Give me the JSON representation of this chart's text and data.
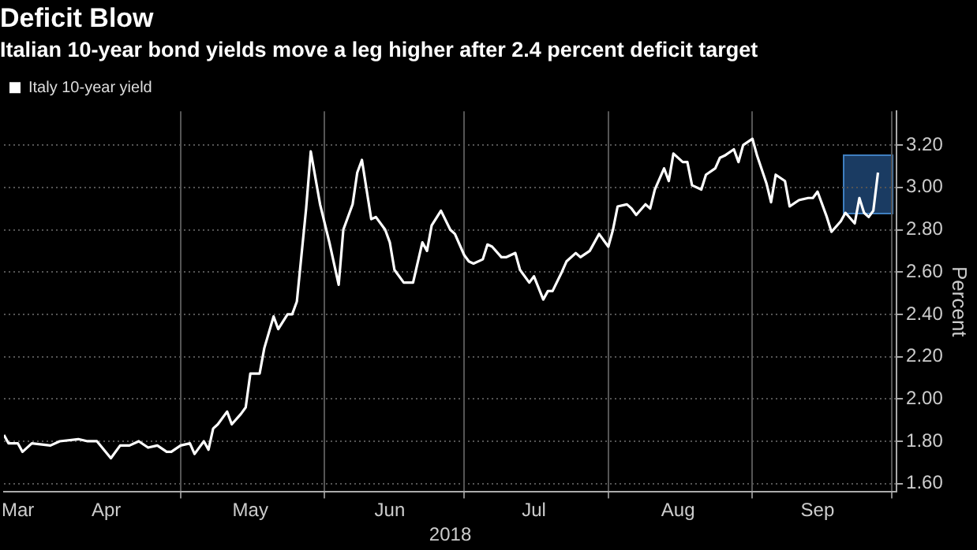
{
  "chart_data": {
    "type": "line",
    "title": "Deficit Blow",
    "subtitle": "Italian 10-year bond yields move a leg higher after 2.4 percent deficit target",
    "xlabel": "2018",
    "ylabel": "Percent",
    "series": [
      {
        "name": "Italy 10-year yield",
        "color": "#ffffff",
        "x": [
          "2018-03-24",
          "2018-03-25",
          "2018-03-27",
          "2018-03-28",
          "2018-03-30",
          "2018-04-03",
          "2018-04-05",
          "2018-04-09",
          "2018-04-11",
          "2018-04-13",
          "2018-04-16",
          "2018-04-18",
          "2018-04-20",
          "2018-04-22",
          "2018-04-24",
          "2018-04-26",
          "2018-04-28",
          "2018-04-29",
          "2018-05-01",
          "2018-05-03",
          "2018-05-04",
          "2018-05-06",
          "2018-05-07",
          "2018-05-08",
          "2018-05-09",
          "2018-05-11",
          "2018-05-12",
          "2018-05-14",
          "2018-05-15",
          "2018-05-16",
          "2018-05-18",
          "2018-05-19",
          "2018-05-21",
          "2018-05-22",
          "2018-05-24",
          "2018-05-25",
          "2018-05-26",
          "2018-05-27",
          "2018-05-28",
          "2018-05-29",
          "2018-05-31",
          "2018-06-02",
          "2018-06-04",
          "2018-06-05",
          "2018-06-07",
          "2018-06-08",
          "2018-06-09",
          "2018-06-11",
          "2018-06-12",
          "2018-06-14",
          "2018-06-15",
          "2018-06-16",
          "2018-06-18",
          "2018-06-20",
          "2018-06-22",
          "2018-06-23",
          "2018-06-24",
          "2018-06-26",
          "2018-06-28",
          "2018-06-29",
          "2018-07-01",
          "2018-07-02",
          "2018-07-03",
          "2018-07-05",
          "2018-07-06",
          "2018-07-07",
          "2018-07-09",
          "2018-07-10",
          "2018-07-12",
          "2018-07-13",
          "2018-07-15",
          "2018-07-16",
          "2018-07-18",
          "2018-07-19",
          "2018-07-20",
          "2018-07-22",
          "2018-07-23",
          "2018-07-25",
          "2018-07-26",
          "2018-07-28",
          "2018-07-30",
          "2018-08-01",
          "2018-08-02",
          "2018-08-03",
          "2018-08-05",
          "2018-08-06",
          "2018-08-07",
          "2018-08-09",
          "2018-08-10",
          "2018-08-11",
          "2018-08-13",
          "2018-08-14",
          "2018-08-15",
          "2018-08-17",
          "2018-08-18",
          "2018-08-19",
          "2018-08-21",
          "2018-08-22",
          "2018-08-24",
          "2018-08-25",
          "2018-08-26",
          "2018-08-28",
          "2018-08-29",
          "2018-08-30",
          "2018-09-01",
          "2018-09-02",
          "2018-09-04",
          "2018-09-05",
          "2018-09-06",
          "2018-09-08",
          "2018-09-09",
          "2018-09-11",
          "2018-09-13",
          "2018-09-14",
          "2018-09-15",
          "2018-09-17",
          "2018-09-18",
          "2018-09-20",
          "2018-09-21",
          "2018-09-23",
          "2018-09-24",
          "2018-09-25",
          "2018-09-26",
          "2018-09-27",
          "2018-09-28"
        ],
        "values": [
          1.83,
          1.79,
          1.79,
          1.75,
          1.79,
          1.78,
          1.8,
          1.81,
          1.8,
          1.8,
          1.72,
          1.78,
          1.78,
          1.8,
          1.77,
          1.78,
          1.75,
          1.75,
          1.78,
          1.79,
          1.74,
          1.8,
          1.76,
          1.86,
          1.88,
          1.94,
          1.88,
          1.93,
          1.96,
          2.12,
          2.12,
          2.24,
          2.39,
          2.33,
          2.4,
          2.4,
          2.46,
          2.68,
          2.9,
          3.17,
          2.92,
          2.74,
          2.54,
          2.8,
          2.92,
          3.07,
          3.13,
          2.85,
          2.86,
          2.8,
          2.74,
          2.61,
          2.55,
          2.55,
          2.74,
          2.7,
          2.82,
          2.89,
          2.8,
          2.78,
          2.68,
          2.65,
          2.64,
          2.66,
          2.73,
          2.72,
          2.67,
          2.67,
          2.69,
          2.61,
          2.55,
          2.58,
          2.47,
          2.51,
          2.51,
          2.6,
          2.65,
          2.69,
          2.67,
          2.7,
          2.78,
          2.72,
          2.8,
          2.91,
          2.92,
          2.9,
          2.87,
          2.92,
          2.9,
          2.99,
          3.09,
          3.03,
          3.16,
          3.12,
          3.12,
          3.01,
          2.99,
          3.06,
          3.09,
          3.14,
          3.15,
          3.18,
          3.12,
          3.2,
          3.23,
          3.15,
          3.02,
          2.93,
          3.06,
          3.03,
          2.91,
          2.94,
          2.95,
          2.95,
          2.98,
          2.86,
          2.79,
          2.84,
          2.88,
          2.83,
          2.95,
          2.88,
          2.86,
          2.89,
          3.07
        ]
      }
    ],
    "xlim": [
      "2018-03-24",
      "2018-10-02"
    ],
    "xticks": [
      {
        "value": "2018-03-27",
        "label": "Mar"
      },
      {
        "value": "2018-04-15",
        "label": "Apr"
      },
      {
        "value": "2018-05-01",
        "label": null
      },
      {
        "value": "2018-05-16",
        "label": "May"
      },
      {
        "value": "2018-06-01",
        "label": null
      },
      {
        "value": "2018-06-15",
        "label": "Jun"
      },
      {
        "value": "2018-07-01",
        "label": null
      },
      {
        "value": "2018-07-16",
        "label": "Jul"
      },
      {
        "value": "2018-08-01",
        "label": null
      },
      {
        "value": "2018-08-16",
        "label": "Aug"
      },
      {
        "value": "2018-09-01",
        "label": null
      },
      {
        "value": "2018-09-15",
        "label": "Sep"
      },
      {
        "value": "2018-10-01",
        "label": null
      }
    ],
    "ylim": [
      1.56,
      3.36
    ],
    "yticks": [
      {
        "value": 1.6,
        "label": "1.60"
      },
      {
        "value": 1.8,
        "label": "1.80"
      },
      {
        "value": 2.0,
        "label": "2.00"
      },
      {
        "value": 2.2,
        "label": "2.20"
      },
      {
        "value": 2.4,
        "label": "2.40"
      },
      {
        "value": 2.6,
        "label": "2.60"
      },
      {
        "value": 2.8,
        "label": "2.80"
      },
      {
        "value": 3.0,
        "label": "3.00"
      },
      {
        "value": 3.2,
        "label": "3.20"
      }
    ],
    "grid": true,
    "legend": "top left",
    "marker": "none",
    "line_style": "solid"
  }
}
